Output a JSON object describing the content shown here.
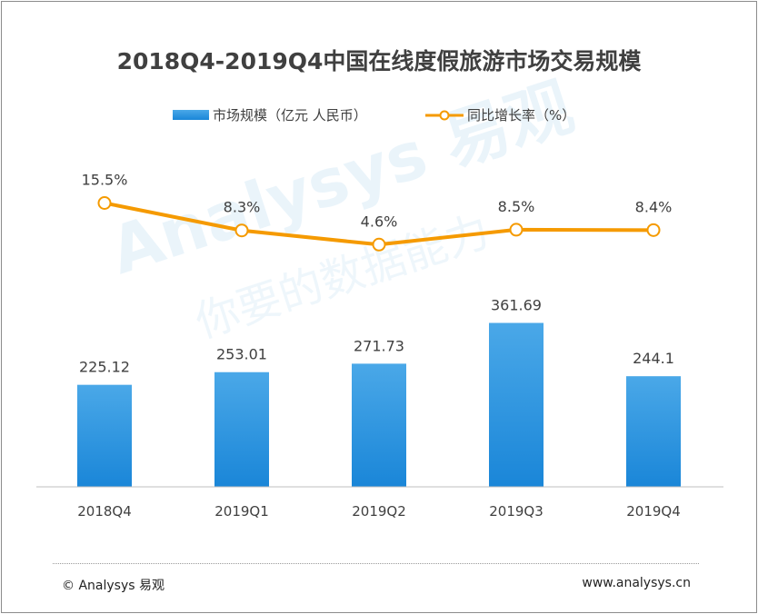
{
  "title": "2018Q4-2019Q4中国在线度假旅游市场交易规模",
  "legend": {
    "bar_label": "市场规模（亿元 人民币）",
    "line_label": "同比增长率（%）"
  },
  "chart_data": {
    "type": "bar+line",
    "title": "2018Q4-2019Q4中国在线度假旅游市场交易规模",
    "categories": [
      "2018Q4",
      "2019Q1",
      "2019Q2",
      "2019Q3",
      "2019Q4"
    ],
    "series": [
      {
        "name": "市场规模（亿元 人民币）",
        "type": "bar",
        "values": [
          225.12,
          253.01,
          271.73,
          361.69,
          244.1
        ],
        "labels": [
          "225.12",
          "253.01",
          "271.73",
          "361.69",
          "244.1"
        ]
      },
      {
        "name": "同比增长率（%）",
        "type": "line",
        "values": [
          15.5,
          8.3,
          4.6,
          8.5,
          8.4
        ],
        "labels": [
          "15.5%",
          "8.3%",
          "4.6%",
          "8.5%",
          "8.4%"
        ]
      }
    ],
    "colors": {
      "bar_top": "#4aa8e8",
      "bar_bottom": "#1a86d8",
      "line": "#f59a00",
      "marker_fill": "#ffffff"
    },
    "grid": false,
    "legend_position": "top"
  },
  "watermark": {
    "brand": "Analysys 易观",
    "slogan": "你要的数据能力"
  },
  "footer": {
    "left": "© Analysys 易观",
    "right": "www.analysys.cn"
  }
}
